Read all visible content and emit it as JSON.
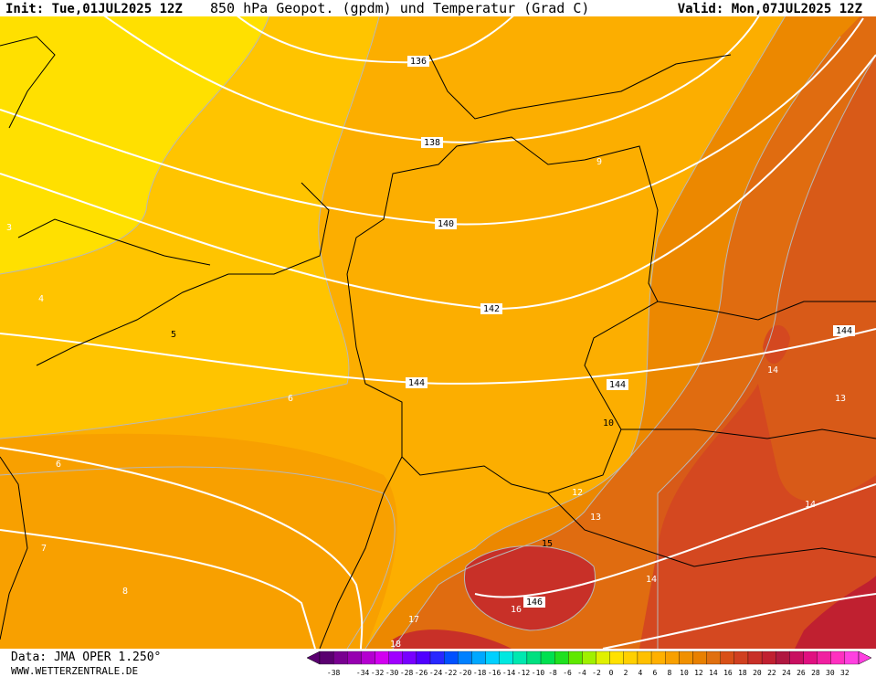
{
  "header": {
    "init": "Init: Tue,01JUL2025 12Z",
    "title": "850 hPa Geopot. (gpdm) und Temperatur (Grad C)",
    "valid": "Valid: Mon,07JUL2025 12Z"
  },
  "geopotential_labels": [
    "136",
    "138",
    "140",
    "142",
    "144",
    "144",
    "144",
    "146"
  ],
  "temperature_labels": [
    "3",
    "4",
    "5",
    "6",
    "6",
    "7",
    "8",
    "9",
    "10",
    "12",
    "13",
    "13",
    "14",
    "14",
    "14",
    "15",
    "16",
    "17",
    "18"
  ],
  "footer": {
    "data": "Data: JMA OPER 1.250°",
    "site": "WWW.WETTERZENTRALE.DE"
  },
  "colorbar": {
    "ticks": [
      -38,
      -34,
      -32,
      -30,
      -28,
      -26,
      -24,
      -22,
      -20,
      -18,
      -16,
      -14,
      -12,
      -10,
      -8,
      -6,
      -4,
      -2,
      0,
      2,
      4,
      6,
      8,
      10,
      12,
      14,
      16,
      18,
      20,
      22,
      24,
      26,
      28,
      30,
      32
    ],
    "colors": [
      "#5a0070",
      "#780090",
      "#9600b0",
      "#b400d0",
      "#d200f0",
      "#a000ff",
      "#7800ff",
      "#5000ff",
      "#2828ff",
      "#0050ff",
      "#0080ff",
      "#00a8ff",
      "#00d0ff",
      "#00e8e0",
      "#00e8b0",
      "#00e080",
      "#00e050",
      "#20e020",
      "#60e800",
      "#a0f000",
      "#e0f000",
      "#ffe100",
      "#ffd000",
      "#ffc000",
      "#ffb000",
      "#f8a000",
      "#f09000",
      "#e88000",
      "#e07010",
      "#d85018",
      "#d04020",
      "#c83028",
      "#c02030",
      "#b01840",
      "#c81060",
      "#e01080",
      "#f020a0",
      "#ff30c0",
      "#ff40e0"
    ]
  }
}
